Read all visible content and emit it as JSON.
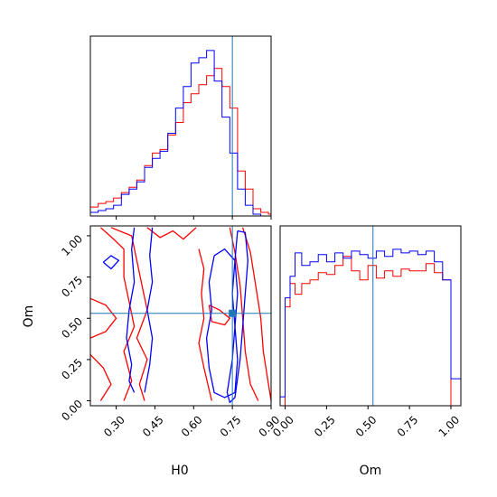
{
  "chart_data": {
    "type": "corner",
    "parameters": [
      "H0",
      "Om"
    ],
    "truths": {
      "H0": 0.75,
      "Om": 0.53
    },
    "ranges": {
      "H0": [
        0.2,
        0.9
      ],
      "Om": [
        -0.03,
        1.06
      ]
    },
    "colors": {
      "series_a": "#ff0000",
      "series_b": "#0000ff",
      "truth": "#1f77b4"
    },
    "axis_labels": {
      "x_left": "H0",
      "x_right": "Om",
      "y_left": "Om"
    },
    "ticks": {
      "H0": [
        0.3,
        0.45,
        0.6,
        0.75,
        0.9
      ],
      "H0_labels": [
        "0.30",
        "0.45",
        "0.60",
        "0.75",
        "0.90"
      ],
      "Om": [
        0.0,
        0.25,
        0.5,
        0.75,
        1.0
      ],
      "Om_labels": [
        "0.00",
        "0.25",
        "0.50",
        "0.75",
        "1.00"
      ]
    },
    "hist_H0": {
      "edges": [
        0.2,
        0.23,
        0.26,
        0.29,
        0.32,
        0.35,
        0.38,
        0.41,
        0.44,
        0.47,
        0.5,
        0.53,
        0.56,
        0.59,
        0.62,
        0.65,
        0.68,
        0.71,
        0.74,
        0.77,
        0.8,
        0.83,
        0.86,
        0.89,
        0.9
      ],
      "series": [
        {
          "color_key": "series_a",
          "values": [
            0.05,
            0.07,
            0.08,
            0.1,
            0.13,
            0.16,
            0.2,
            0.28,
            0.35,
            0.37,
            0.45,
            0.52,
            0.63,
            0.68,
            0.73,
            0.78,
            0.82,
            0.72,
            0.6,
            0.25,
            0.15,
            0.04,
            0.02,
            0.01
          ]
        },
        {
          "color_key": "series_b",
          "values": [
            0.02,
            0.03,
            0.04,
            0.06,
            0.12,
            0.15,
            0.19,
            0.27,
            0.32,
            0.36,
            0.46,
            0.6,
            0.72,
            0.85,
            0.88,
            0.92,
            0.75,
            0.55,
            0.35,
            0.15,
            0.06,
            0.01,
            0.0,
            0.0
          ]
        }
      ]
    },
    "hist_Om": {
      "edges": [
        -0.03,
        0.0,
        0.03,
        0.06,
        0.1,
        0.15,
        0.2,
        0.25,
        0.3,
        0.35,
        0.4,
        0.45,
        0.5,
        0.55,
        0.6,
        0.65,
        0.7,
        0.75,
        0.8,
        0.85,
        0.9,
        0.95,
        1.0,
        1.06
      ],
      "series": [
        {
          "color_key": "series_a",
          "values": [
            0.0,
            0.55,
            0.68,
            0.62,
            0.68,
            0.7,
            0.74,
            0.73,
            0.78,
            0.83,
            0.75,
            0.7,
            0.78,
            0.71,
            0.75,
            0.72,
            0.76,
            0.75,
            0.75,
            0.79,
            0.74,
            0.7,
            0.0
          ]
        },
        {
          "color_key": "series_b",
          "values": [
            0.05,
            0.6,
            0.72,
            0.85,
            0.78,
            0.8,
            0.84,
            0.8,
            0.85,
            0.82,
            0.86,
            0.84,
            0.82,
            0.86,
            0.83,
            0.87,
            0.85,
            0.86,
            0.84,
            0.86,
            0.8,
            0.7,
            0.15
          ]
        }
      ]
    },
    "contours": [
      {
        "color_key": "series_a",
        "path": [
          [
            0.24,
            1.05
          ],
          [
            0.29,
            0.98
          ],
          [
            0.33,
            0.92
          ],
          [
            0.33,
            0.75
          ],
          [
            0.35,
            0.6
          ],
          [
            0.37,
            0.45
          ],
          [
            0.33,
            0.3
          ],
          [
            0.36,
            0.12
          ],
          [
            0.33,
            0.0
          ]
        ]
      },
      {
        "color_key": "series_a",
        "path": [
          [
            0.28,
            1.05
          ],
          [
            0.36,
            1.0
          ],
          [
            0.38,
            0.85
          ],
          [
            0.4,
            0.7
          ],
          [
            0.42,
            0.55
          ],
          [
            0.38,
            0.38
          ],
          [
            0.42,
            0.25
          ],
          [
            0.39,
            0.1
          ],
          [
            0.41,
            0.0
          ]
        ]
      },
      {
        "color_key": "series_a",
        "path": [
          [
            0.2,
            0.62
          ],
          [
            0.26,
            0.58
          ],
          [
            0.3,
            0.5
          ],
          [
            0.26,
            0.42
          ],
          [
            0.2,
            0.38
          ]
        ]
      },
      {
        "color_key": "series_a",
        "path": [
          [
            0.2,
            0.28
          ],
          [
            0.25,
            0.2
          ],
          [
            0.28,
            0.1
          ],
          [
            0.24,
            0.0
          ]
        ]
      },
      {
        "color_key": "series_a",
        "path": [
          [
            0.42,
            1.05
          ],
          [
            0.47,
            0.99
          ],
          [
            0.52,
            1.03
          ],
          [
            0.56,
            0.98
          ],
          [
            0.61,
            1.05
          ]
        ]
      },
      {
        "color_key": "series_a",
        "path": [
          [
            0.62,
            0.92
          ],
          [
            0.64,
            0.8
          ],
          [
            0.63,
            0.65
          ],
          [
            0.64,
            0.5
          ],
          [
            0.62,
            0.35
          ],
          [
            0.64,
            0.2
          ],
          [
            0.67,
            0.0
          ]
        ]
      },
      {
        "color_key": "series_a",
        "path": [
          [
            0.74,
            1.05
          ],
          [
            0.76,
            0.9
          ],
          [
            0.78,
            0.7
          ],
          [
            0.79,
            0.5
          ],
          [
            0.8,
            0.3
          ],
          [
            0.82,
            0.1
          ],
          [
            0.85,
            0.0
          ]
        ]
      },
      {
        "color_key": "series_a",
        "path": [
          [
            0.79,
            1.05
          ],
          [
            0.82,
            0.9
          ],
          [
            0.84,
            0.7
          ],
          [
            0.86,
            0.5
          ],
          [
            0.87,
            0.3
          ],
          [
            0.89,
            0.1
          ],
          [
            0.9,
            0.0
          ]
        ]
      },
      {
        "color_key": "series_a",
        "path": [
          [
            0.66,
            0.58
          ],
          [
            0.7,
            0.55
          ],
          [
            0.74,
            0.5
          ],
          [
            0.72,
            0.46
          ],
          [
            0.67,
            0.48
          ],
          [
            0.66,
            0.58
          ]
        ]
      },
      {
        "color_key": "series_b",
        "path": [
          [
            0.37,
            1.05
          ],
          [
            0.36,
            0.92
          ],
          [
            0.37,
            0.72
          ],
          [
            0.35,
            0.55
          ],
          [
            0.34,
            0.38
          ],
          [
            0.36,
            0.22
          ],
          [
            0.35,
            0.12
          ],
          [
            0.37,
            0.05
          ]
        ]
      },
      {
        "color_key": "series_b",
        "path": [
          [
            0.44,
            1.05
          ],
          [
            0.43,
            0.88
          ],
          [
            0.44,
            0.72
          ],
          [
            0.42,
            0.55
          ],
          [
            0.44,
            0.38
          ],
          [
            0.43,
            0.22
          ],
          [
            0.41,
            0.05
          ]
        ]
      },
      {
        "color_key": "series_b",
        "path": [
          [
            0.25,
            0.84
          ],
          [
            0.28,
            0.88
          ],
          [
            0.31,
            0.85
          ],
          [
            0.28,
            0.8
          ],
          [
            0.25,
            0.84
          ]
        ]
      },
      {
        "color_key": "series_b",
        "path": [
          [
            0.68,
            0.88
          ],
          [
            0.66,
            0.72
          ],
          [
            0.67,
            0.55
          ],
          [
            0.65,
            0.38
          ],
          [
            0.66,
            0.2
          ],
          [
            0.68,
            0.05
          ],
          [
            0.72,
            0.02
          ],
          [
            0.76,
            0.05
          ],
          [
            0.77,
            0.25
          ],
          [
            0.76,
            0.45
          ],
          [
            0.77,
            0.65
          ],
          [
            0.76,
            0.85
          ],
          [
            0.72,
            0.92
          ],
          [
            0.68,
            0.88
          ]
        ]
      },
      {
        "color_key": "series_b",
        "path": [
          [
            0.77,
            1.03
          ],
          [
            0.8,
            1.02
          ],
          [
            0.81,
            0.85
          ],
          [
            0.8,
            0.65
          ],
          [
            0.79,
            0.45
          ],
          [
            0.78,
            0.25
          ],
          [
            0.76,
            0.02
          ],
          [
            0.74,
            -0.01
          ],
          [
            0.73,
            0.05
          ],
          [
            0.75,
            0.25
          ],
          [
            0.76,
            0.45
          ],
          [
            0.75,
            0.65
          ],
          [
            0.76,
            0.85
          ],
          [
            0.77,
            1.03
          ]
        ]
      }
    ]
  }
}
